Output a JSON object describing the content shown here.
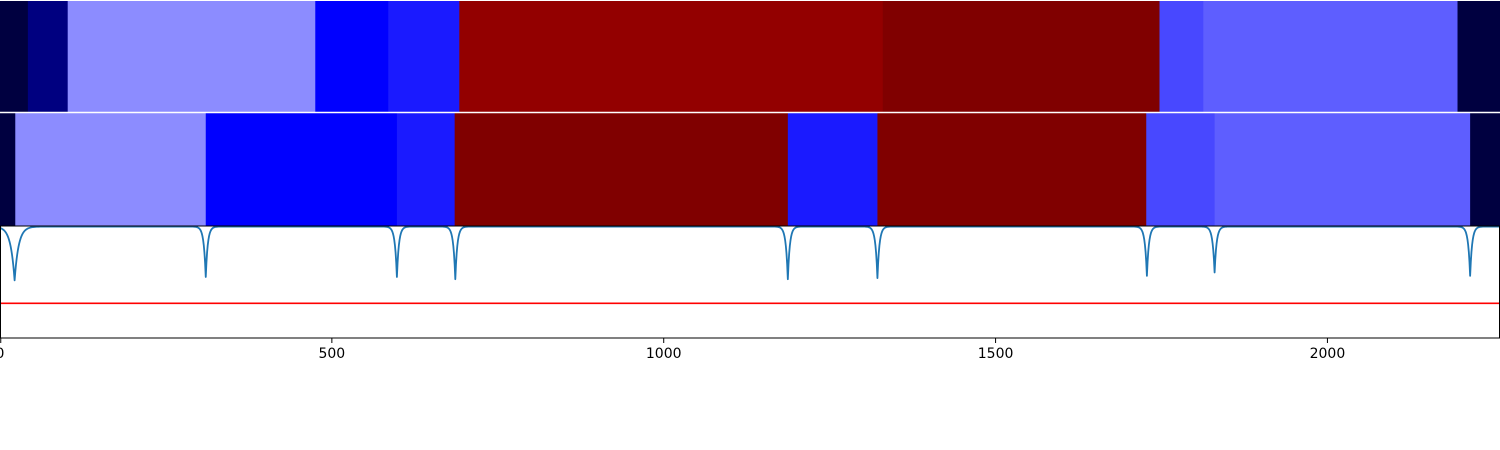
{
  "chart_data": {
    "type": "heatmap",
    "xlim": [
      0,
      2260
    ],
    "x_ticks": [
      {
        "value": 0,
        "label": "0"
      },
      {
        "value": 500,
        "label": "500"
      },
      {
        "value": 1000,
        "label": "1000"
      },
      {
        "value": 1500,
        "label": "1500"
      },
      {
        "value": 2000,
        "label": "2000"
      }
    ],
    "rows": [
      {
        "segments": [
          {
            "start": 0,
            "end": 42,
            "color": "#000040"
          },
          {
            "start": 42,
            "end": 102,
            "color": "#000080"
          },
          {
            "start": 102,
            "end": 475,
            "color": "#8c8cff"
          },
          {
            "start": 475,
            "end": 585,
            "color": "#0000ff"
          },
          {
            "start": 585,
            "end": 692,
            "color": "#1a1aff"
          },
          {
            "start": 692,
            "end": 1330,
            "color": "#930000"
          },
          {
            "start": 1330,
            "end": 1747,
            "color": "#800000"
          },
          {
            "start": 1747,
            "end": 1813,
            "color": "#4848ff"
          },
          {
            "start": 1813,
            "end": 2196,
            "color": "#5e5eff"
          },
          {
            "start": 2196,
            "end": 2260,
            "color": "#000040"
          }
        ]
      },
      {
        "segments": [
          {
            "start": 0,
            "end": 23,
            "color": "#000040"
          },
          {
            "start": 23,
            "end": 310,
            "color": "#8c8cff"
          },
          {
            "start": 310,
            "end": 598,
            "color": "#0000ff"
          },
          {
            "start": 598,
            "end": 685,
            "color": "#1a1aff"
          },
          {
            "start": 685,
            "end": 1187,
            "color": "#800000"
          },
          {
            "start": 1187,
            "end": 1322,
            "color": "#1a1aff"
          },
          {
            "start": 1322,
            "end": 1727,
            "color": "#800000"
          },
          {
            "start": 1727,
            "end": 1830,
            "color": "#4848ff"
          },
          {
            "start": 1830,
            "end": 2215,
            "color": "#5e5eff"
          },
          {
            "start": 2215,
            "end": 2260,
            "color": "#000040"
          }
        ]
      }
    ],
    "line_panel": {
      "ylim": [
        0,
        1
      ],
      "baseline": 0.995,
      "line_color": "#1f77b4",
      "dips": [
        {
          "x": 22,
          "depth": 0.48,
          "width": 6
        },
        {
          "x": 310,
          "depth": 0.45,
          "width": 3
        },
        {
          "x": 598,
          "depth": 0.45,
          "width": 3
        },
        {
          "x": 686,
          "depth": 0.47,
          "width": 3
        },
        {
          "x": 1187,
          "depth": 0.47,
          "width": 3
        },
        {
          "x": 1322,
          "depth": 0.46,
          "width": 3
        },
        {
          "x": 1728,
          "depth": 0.44,
          "width": 3
        },
        {
          "x": 1830,
          "depth": 0.41,
          "width": 3
        },
        {
          "x": 2215,
          "depth": 0.44,
          "width": 3
        }
      ],
      "threshold": 0.31,
      "threshold_color": "#ff0000"
    }
  }
}
